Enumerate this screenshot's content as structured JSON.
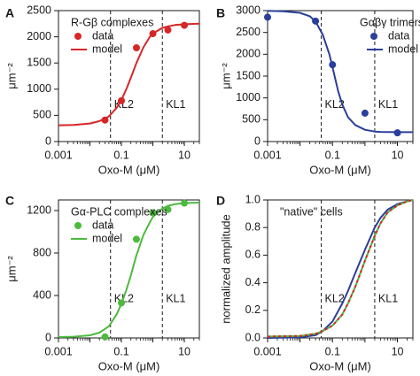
{
  "chart_data": [
    {
      "panel": "A",
      "type": "scatter",
      "legend_title": "R-Gβ complexes",
      "legend_position": "top-left",
      "xlabel": "Oxo-M (μM)",
      "ylabel": "μm⁻²",
      "xscale": "log",
      "xlim": [
        0.001,
        30
      ],
      "ylim": [
        0,
        2500
      ],
      "xticks": [
        {
          "value": 0.001,
          "label": "0.001"
        },
        {
          "value": 0.1,
          "label": "0.1"
        },
        {
          "value": 10,
          "label": "10"
        }
      ],
      "yticks": [
        {
          "value": 0,
          "label": "0"
        },
        {
          "value": 500,
          "label": "500"
        },
        {
          "value": 1000,
          "label": "1000"
        },
        {
          "value": 1500,
          "label": "1500"
        },
        {
          "value": 2000,
          "label": "2000"
        },
        {
          "value": 2500,
          "label": "2500"
        }
      ],
      "series": [
        {
          "name": "data",
          "kind": "points",
          "color": "#d62728",
          "x": [
            0.03,
            0.1,
            0.3,
            1,
            3,
            10
          ],
          "y": [
            410,
            780,
            1790,
            2060,
            2130,
            2220
          ]
        },
        {
          "name": "model",
          "kind": "line",
          "color": "#d62728",
          "x": [
            0.001,
            0.003,
            0.01,
            0.02,
            0.04,
            0.07,
            0.1,
            0.15,
            0.2,
            0.3,
            0.5,
            0.8,
            1,
            2,
            3,
            5,
            10,
            30
          ],
          "y": [
            310,
            318,
            345,
            390,
            480,
            640,
            790,
            1030,
            1220,
            1500,
            1800,
            2000,
            2060,
            2170,
            2200,
            2225,
            2240,
            2250
          ]
        }
      ],
      "annotations": [
        {
          "label": "KL2",
          "x": 0.045,
          "line_style": "dashed"
        },
        {
          "label": "KL1",
          "x": 2,
          "line_style": "dashed"
        }
      ]
    },
    {
      "panel": "B",
      "type": "scatter",
      "legend_title": "Gαβγ trimers",
      "legend_position": "top-right",
      "xlabel": "Oxo-M (μM)",
      "ylabel": "μm⁻²",
      "xscale": "log",
      "xlim": [
        0.001,
        30
      ],
      "ylim": [
        0,
        3000
      ],
      "xticks": [
        {
          "value": 0.001,
          "label": "0.001"
        },
        {
          "value": 0.1,
          "label": "0.1"
        },
        {
          "value": 10,
          "label": "10"
        }
      ],
      "yticks": [
        {
          "value": 0,
          "label": "0"
        },
        {
          "value": 500,
          "label": "500"
        },
        {
          "value": 1000,
          "label": "1000"
        },
        {
          "value": 1500,
          "label": "1500"
        },
        {
          "value": 2000,
          "label": "2000"
        },
        {
          "value": 2500,
          "label": "2500"
        },
        {
          "value": 3000,
          "label": "3000"
        }
      ],
      "series": [
        {
          "name": "data",
          "kind": "points",
          "color": "#2b3e9b",
          "x": [
            0.001,
            0.03,
            0.1,
            1,
            10
          ],
          "y": [
            2850,
            2760,
            1760,
            650,
            200
          ]
        },
        {
          "name": "model",
          "kind": "line",
          "color": "#2b3e9b",
          "x": [
            0.001,
            0.003,
            0.01,
            0.02,
            0.03,
            0.05,
            0.08,
            0.1,
            0.15,
            0.2,
            0.3,
            0.5,
            1,
            2,
            3,
            10,
            30
          ],
          "y": [
            2995,
            2985,
            2950,
            2870,
            2750,
            2450,
            2000,
            1700,
            1150,
            850,
            560,
            380,
            270,
            230,
            220,
            215,
            215
          ]
        }
      ],
      "annotations": [
        {
          "label": "KL2",
          "x": 0.045,
          "line_style": "dashed"
        },
        {
          "label": "KL1",
          "x": 2,
          "line_style": "dashed"
        }
      ]
    },
    {
      "panel": "C",
      "type": "scatter",
      "legend_title": "Gα-PLC complexes",
      "legend_position": "top-left",
      "xlabel": "Oxo-M (μM)",
      "ylabel": "μm⁻²",
      "xscale": "log",
      "xlim": [
        0.001,
        30
      ],
      "ylim": [
        0,
        1300
      ],
      "xticks": [
        {
          "value": 0.001,
          "label": "0.001"
        },
        {
          "value": 0.1,
          "label": "0.1"
        },
        {
          "value": 10,
          "label": "10"
        }
      ],
      "yticks": [
        {
          "value": 0,
          "label": "0"
        },
        {
          "value": 400,
          "label": "400"
        },
        {
          "value": 800,
          "label": "800"
        },
        {
          "value": 1200,
          "label": "1200"
        }
      ],
      "series": [
        {
          "name": "data",
          "kind": "points",
          "color": "#4dba3e",
          "x": [
            0.03,
            0.1,
            0.3,
            1,
            3,
            10
          ],
          "y": [
            10,
            330,
            930,
            1180,
            1210,
            1270
          ]
        },
        {
          "name": "model",
          "kind": "line",
          "color": "#4dba3e",
          "x": [
            0.001,
            0.003,
            0.01,
            0.02,
            0.04,
            0.07,
            0.1,
            0.15,
            0.2,
            0.3,
            0.5,
            0.8,
            1,
            2,
            3,
            5,
            10,
            30
          ],
          "y": [
            8,
            12,
            25,
            50,
            110,
            220,
            320,
            470,
            590,
            780,
            970,
            1090,
            1140,
            1220,
            1245,
            1260,
            1270,
            1275
          ]
        }
      ],
      "annotations": [
        {
          "label": "KL2",
          "x": 0.045,
          "line_style": "dashed"
        },
        {
          "label": "KL1",
          "x": 2,
          "line_style": "dashed"
        }
      ]
    },
    {
      "panel": "D",
      "type": "line",
      "legend_title": "\"native\" cells",
      "legend_position": "top-left",
      "xlabel": "Oxo-M (μM)",
      "ylabel": "normalized amplitude",
      "xscale": "log",
      "xlim": [
        0.001,
        30
      ],
      "ylim": [
        0,
        1.0
      ],
      "xticks": [
        {
          "value": 0.001,
          "label": "0.001"
        },
        {
          "value": 0.1,
          "label": "0.1"
        },
        {
          "value": 10,
          "label": "10"
        }
      ],
      "yticks": [
        {
          "value": 0,
          "label": "0.0"
        },
        {
          "value": 0.2,
          "label": "0.2"
        },
        {
          "value": 0.4,
          "label": "0.4"
        },
        {
          "value": 0.6,
          "label": "0.6"
        },
        {
          "value": 0.8,
          "label": "0.8"
        },
        {
          "value": 1.0,
          "label": "1.0"
        }
      ],
      "series": [
        {
          "kind": "line",
          "color": "#2b3e9b",
          "dashed": false,
          "x": [
            0.001,
            0.01,
            0.03,
            0.05,
            0.1,
            0.2,
            0.3,
            0.5,
            1,
            2,
            3,
            5,
            10,
            20,
            30
          ],
          "y": [
            0.0,
            0.005,
            0.02,
            0.05,
            0.12,
            0.25,
            0.34,
            0.47,
            0.64,
            0.8,
            0.87,
            0.93,
            0.97,
            0.99,
            1.0
          ]
        },
        {
          "kind": "line",
          "color": "#4dba3e",
          "dashed": false,
          "x": [
            0.001,
            0.01,
            0.03,
            0.05,
            0.1,
            0.2,
            0.3,
            0.5,
            1,
            2,
            3,
            5,
            10,
            20,
            30
          ],
          "y": [
            0.01,
            0.015,
            0.03,
            0.05,
            0.09,
            0.17,
            0.25,
            0.37,
            0.56,
            0.74,
            0.83,
            0.91,
            0.96,
            0.99,
            1.0
          ]
        },
        {
          "kind": "line",
          "color": "#d62728",
          "dashed": true,
          "x": [
            0.001,
            0.01,
            0.03,
            0.05,
            0.1,
            0.2,
            0.3,
            0.5,
            1,
            2,
            3,
            5,
            10,
            20,
            30
          ],
          "y": [
            0.01,
            0.015,
            0.03,
            0.05,
            0.09,
            0.17,
            0.25,
            0.37,
            0.56,
            0.74,
            0.83,
            0.91,
            0.96,
            0.99,
            1.0
          ]
        }
      ],
      "annotations": [
        {
          "label": "KL2",
          "x": 0.045,
          "line_style": "dashed"
        },
        {
          "label": "KL1",
          "x": 2,
          "line_style": "dashed"
        }
      ]
    }
  ]
}
